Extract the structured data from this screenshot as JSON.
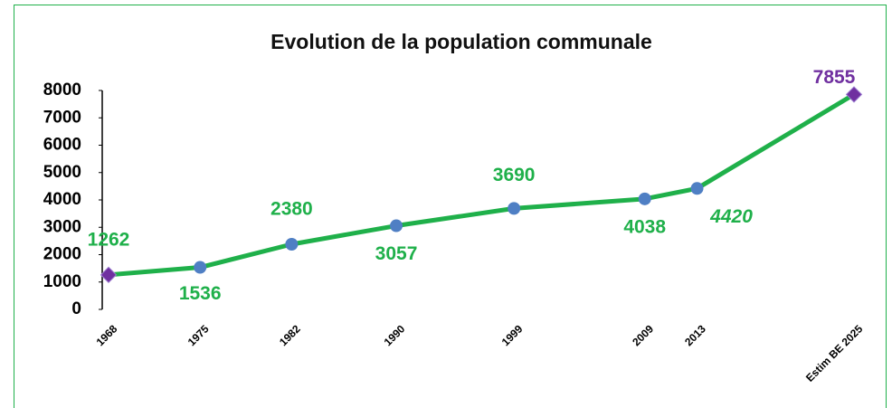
{
  "chart_data": {
    "type": "line",
    "title": "Evolution de la population communale",
    "x": [
      1968,
      1975,
      1982,
      1990,
      1999,
      2009,
      2013,
      2025
    ],
    "series": [
      {
        "color": "#1fb04a",
        "values": [
          1262,
          1536,
          2380,
          3057,
          3690,
          4038,
          4420,
          7855
        ],
        "marker_colors": [
          "#7030a0",
          "#4f7fc4",
          "#4f7fc4",
          "#4f7fc4",
          "#4f7fc4",
          "#4f7fc4",
          "#4f7fc4",
          "#7030a0"
        ]
      }
    ],
    "xlim": [
      1968,
      2025
    ],
    "xticks": [
      1968,
      1975,
      1982,
      1990,
      1999,
      2009,
      2013,
      {
        "value": 2025,
        "label": "Estim BE 2025"
      }
    ],
    "ylim": [
      0,
      8000
    ],
    "yticks": [
      0,
      1000,
      2000,
      3000,
      4000,
      5000,
      6000,
      7000,
      8000
    ]
  }
}
